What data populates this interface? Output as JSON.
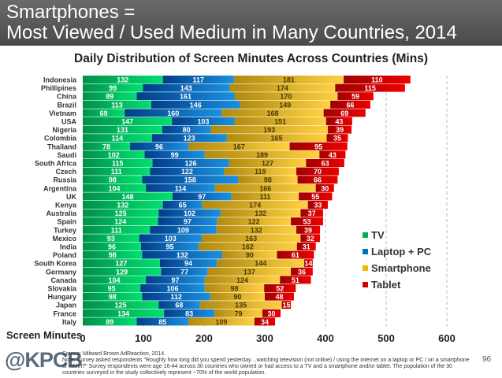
{
  "header": {
    "title_line1": "Smartphones =",
    "title_line2": "Most Viewed / Used Medium in Many Countries, 2014"
  },
  "footer": {
    "logo": "@KPCB",
    "source": "Source: Milward Brown AdReaction, 2014.",
    "note": "Note: Survey asked respondents \"Roughly how long did you spend yesterday…watching television (not online) / using the internet on a laptop or PC / on a smartphone or tablet?\" Survey respondents were age 16-44 across 30 countries who owned or had access to a TV and a smartphone and/or tablet. The population of the 30 countries surveyed in the study collectively represent ~70% of the world population.",
    "page": "96"
  },
  "chart_data": {
    "type": "bar",
    "orientation": "horizontal",
    "stacked": true,
    "title": "Daily Distribution of Screen Minutes Across Countries (Mins)",
    "xlabel": "Screen Minutes",
    "xlim": [
      0,
      600
    ],
    "xticks": [
      0,
      100,
      200,
      300,
      400,
      500,
      600
    ],
    "legend": "right",
    "categories": [
      "Indonesia",
      "Phillipines",
      "China",
      "Brazil",
      "Vietnam",
      "USA",
      "Nigeria",
      "Colombia",
      "Thailand",
      "Saudi",
      "South Africa",
      "Czech",
      "Russia",
      "Argentina",
      "UK",
      "Kenya",
      "Australia",
      "Spain",
      "Turkey",
      "Mexico",
      "India",
      "Poland",
      "South Korea",
      "Germany",
      "Canada",
      "Slovakia",
      "Hungary",
      "Japan",
      "France",
      "Italy"
    ],
    "series": [
      {
        "name": "TV",
        "color": "#00b050",
        "values": [
          132,
          99,
          89,
          113,
          69,
          147,
          131,
          114,
          78,
          102,
          115,
          111,
          98,
          104,
          148,
          132,
          125,
          124,
          111,
          93,
          96,
          98,
          127,
          129,
          104,
          95,
          98,
          125,
          134,
          89
        ]
      },
      {
        "name": "Laptop + PC",
        "color": "#0070c0",
        "values": [
          117,
          143,
          161,
          146,
          160,
          103,
          80,
          123,
          96,
          99,
          126,
          122,
          158,
          114,
          97,
          65,
          102,
          97,
          109,
          103,
          95,
          132,
          94,
          77,
          97,
          106,
          112,
          68,
          83,
          85
        ]
      },
      {
        "name": "Smartphone",
        "color": "#f0b800",
        "values": [
          181,
          174,
          170,
          149,
          168,
          151,
          193,
          165,
          167,
          189,
          127,
          119,
          98,
          166,
          111,
          174,
          132,
          122,
          132,
          163,
          162,
          90,
          144,
          137,
          124,
          98,
          90,
          135,
          79,
          109
        ]
      },
      {
        "name": "Tablet",
        "color": "#d00000",
        "values": [
          110,
          115,
          59,
          66,
          69,
          43,
          39,
          35,
          95,
          43,
          63,
          70,
          66,
          30,
          55,
          33,
          37,
          53,
          39,
          32,
          31,
          61,
          14,
          36,
          51,
          52,
          48,
          15,
          30,
          34
        ]
      }
    ]
  }
}
